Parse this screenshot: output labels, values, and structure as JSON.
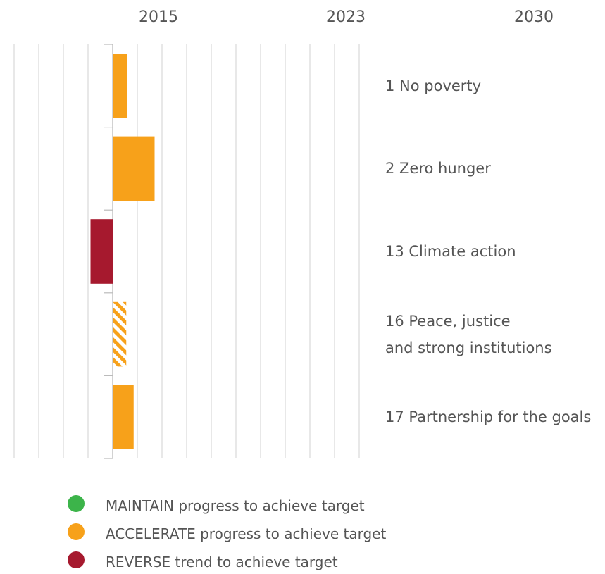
{
  "chart_data": {
    "type": "bar",
    "column_labels": [
      "2015",
      "2023",
      "2030"
    ],
    "categories": [
      "1 No poverty",
      "2 Zero hunger",
      "13 Climate action",
      "16 Peace, justice\nand strong institutions",
      "17 Partnership for the goals"
    ],
    "values": [
      0.6,
      1.7,
      -0.9,
      0.55,
      0.85
    ],
    "colors": [
      "#f7a11a",
      "#f7a11a",
      "#a6192e",
      "#f7a11a",
      "#f7a11a"
    ],
    "hatched": [
      false,
      false,
      false,
      true,
      false
    ],
    "xlim": [
      -4,
      10
    ],
    "xticks": [
      -4,
      -3,
      -2,
      -1,
      0,
      1,
      2,
      3,
      4,
      5,
      6,
      7,
      8,
      9,
      10
    ],
    "grid": true,
    "legend": [
      {
        "name": "MAINTAIN progress to achieve target",
        "color": "#3cb44a"
      },
      {
        "name": "ACCELERATE progress to achieve target",
        "color": "#f7a11a"
      },
      {
        "name": "REVERSE trend to achieve target",
        "color": "#a6192e"
      }
    ]
  }
}
